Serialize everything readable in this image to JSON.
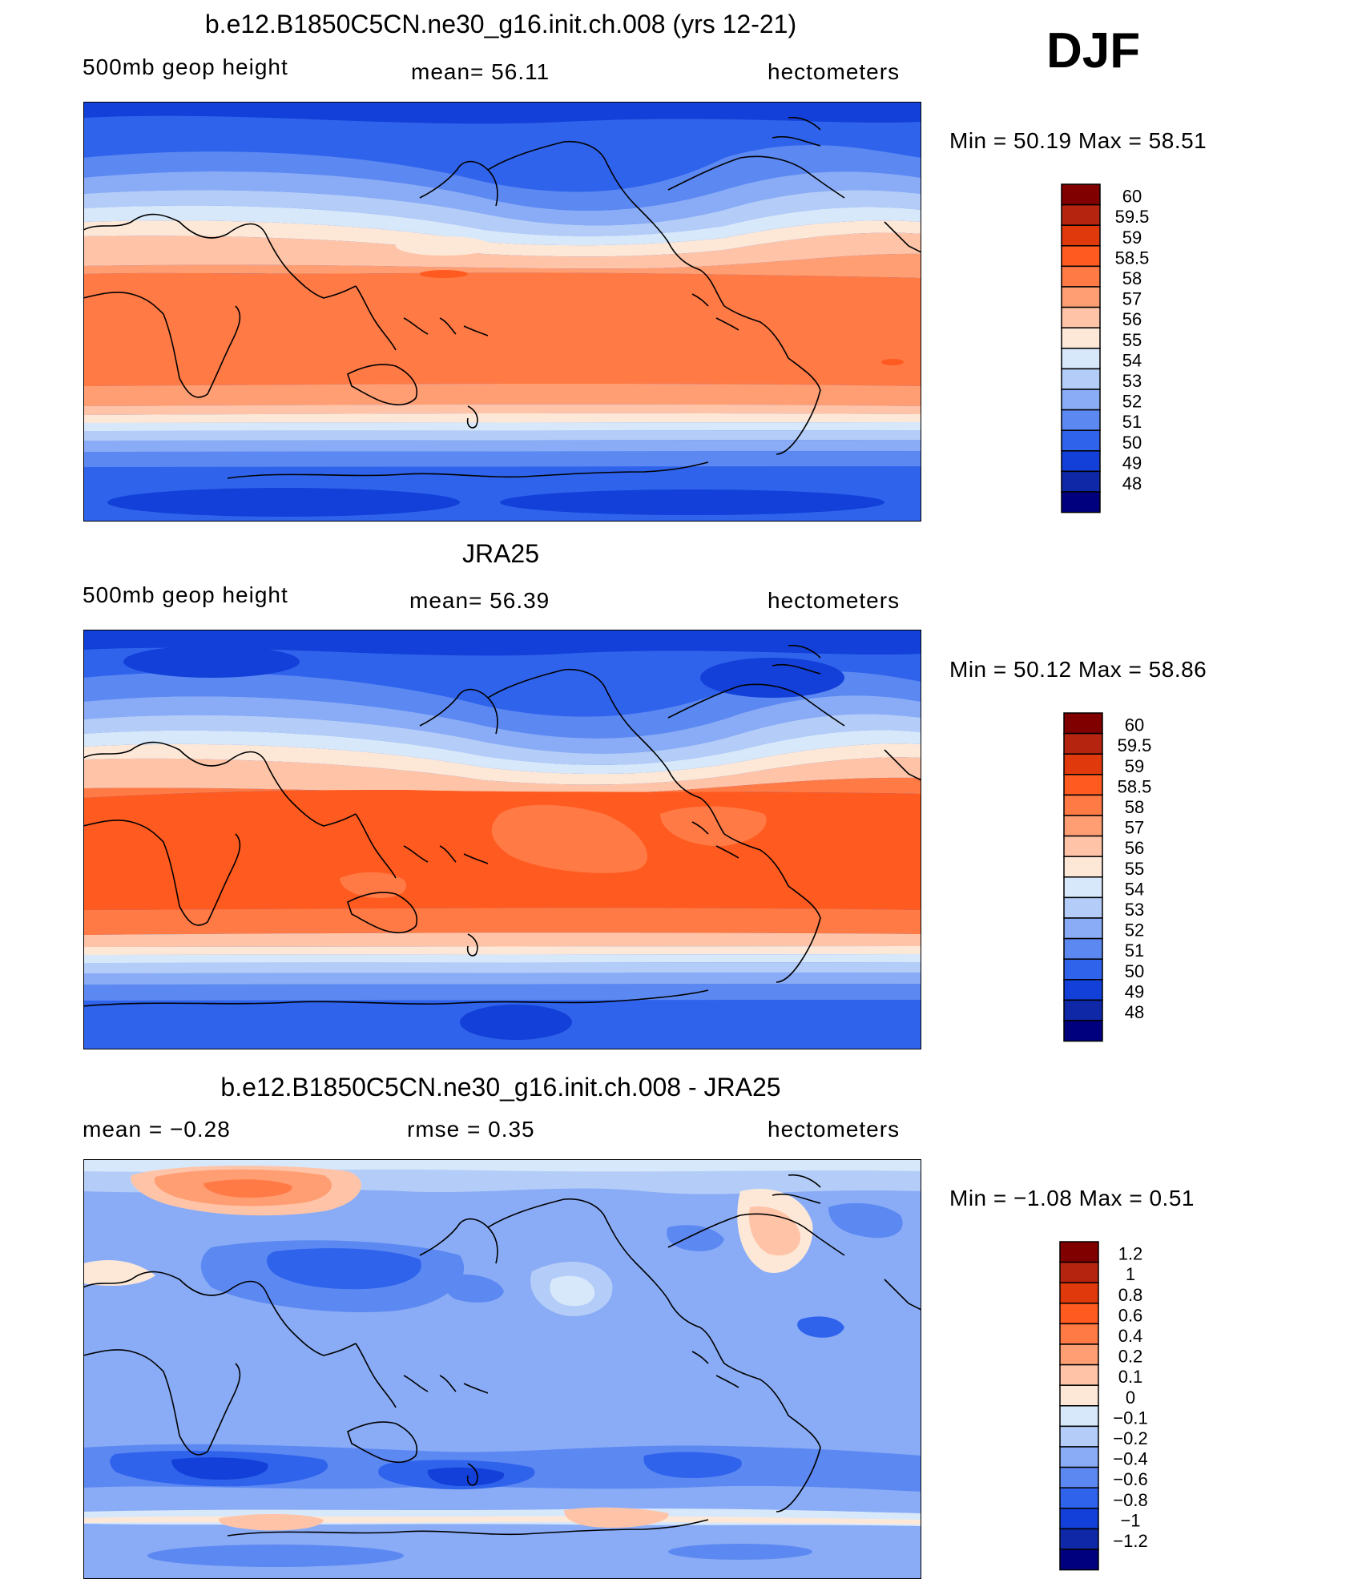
{
  "season": "DJF",
  "panels": [
    {
      "title": "b.e12.B1850C5CN.ne30_g16.init.ch.008 (yrs 12-21)",
      "left_label": "500mb geop height",
      "center_label": "mean=   56.11",
      "right_label": "hectometers",
      "minmax": "Min =    50.19  Max =    58.51"
    },
    {
      "title": "JRA25",
      "left_label": "500mb geop height",
      "center_label": "mean=   56.39",
      "right_label": "hectometers",
      "minmax": "Min =    50.12  Max =    58.86"
    },
    {
      "title": "b.e12.B1850C5CN.ne30_g16.init.ch.008 - JRA25",
      "left_label": "mean =    −0.28",
      "center_label": "rmse =     0.35",
      "right_label": "hectometers",
      "minmax": "Min =    −1.08  Max =     0.51"
    }
  ],
  "chart_data": [
    {
      "type": "heatmap",
      "title": "b.e12.B1850C5CN.ne30_g16.init.ch.008 (yrs 12-21)",
      "field": "500mb geop height",
      "units": "hectometers",
      "mean": 56.11,
      "min": 50.19,
      "max": 58.51,
      "levels": [
        "60",
        "59.5",
        "59",
        "58.5",
        "58",
        "57",
        "56",
        "55",
        "54",
        "53",
        "52",
        "51",
        "50",
        "49",
        "48"
      ],
      "colors": [
        "#800000",
        "#b5240f",
        "#e03a0c",
        "#ff5a1f",
        "#ff7a45",
        "#ff9e73",
        "#ffc4a8",
        "#fde8d8",
        "#d7e8fb",
        "#b4cdf8",
        "#8aacf6",
        "#5c88f2",
        "#2f63ec",
        "#1240d8",
        "#0e28a8",
        "#00007f"
      ]
    },
    {
      "type": "heatmap",
      "title": "JRA25",
      "field": "500mb geop height",
      "units": "hectometers",
      "mean": 56.39,
      "min": 50.12,
      "max": 58.86,
      "levels": [
        "60",
        "59.5",
        "59",
        "58.5",
        "58",
        "57",
        "56",
        "55",
        "54",
        "53",
        "52",
        "51",
        "50",
        "49",
        "48"
      ],
      "colors": [
        "#800000",
        "#b5240f",
        "#e03a0c",
        "#ff5a1f",
        "#ff7a45",
        "#ff9e73",
        "#ffc4a8",
        "#fde8d8",
        "#d7e8fb",
        "#b4cdf8",
        "#8aacf6",
        "#5c88f2",
        "#2f63ec",
        "#1240d8",
        "#0e28a8",
        "#00007f"
      ]
    },
    {
      "type": "heatmap",
      "title": "b.e12.B1850C5CN.ne30_g16.init.ch.008 - JRA25",
      "units": "hectometers",
      "mean": -0.28,
      "rmse": 0.35,
      "min": -1.08,
      "max": 0.51,
      "levels": [
        "1.2",
        "1",
        "0.8",
        "0.6",
        "0.4",
        "0.2",
        "0.1",
        "0",
        "−0.1",
        "−0.2",
        "−0.4",
        "−0.6",
        "−0.8",
        "−1",
        "−1.2"
      ],
      "colors": [
        "#800000",
        "#b5240f",
        "#e03a0c",
        "#ff5a1f",
        "#ff7a45",
        "#ff9e73",
        "#ffc4a8",
        "#fde8d8",
        "#d7e8fb",
        "#b4cdf8",
        "#8aacf6",
        "#5c88f2",
        "#2f63ec",
        "#1240d8",
        "#0e28a8",
        "#00007f"
      ]
    }
  ]
}
